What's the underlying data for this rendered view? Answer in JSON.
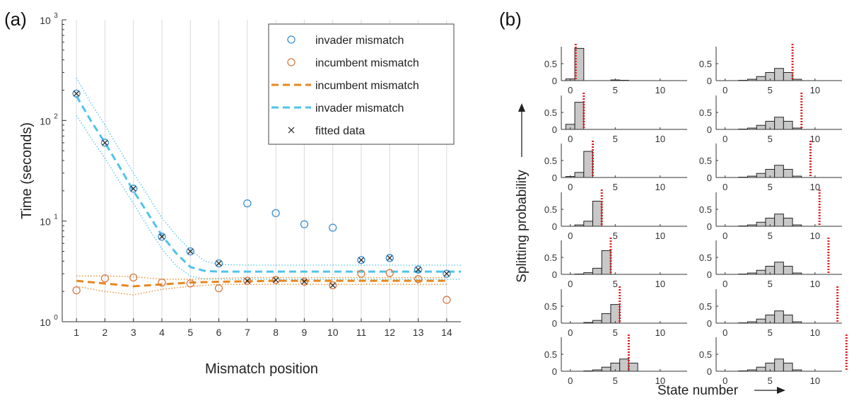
{
  "chart_data": [
    {
      "panel_label": "(a)",
      "type": "scatter",
      "xlabel": "Mismatch position",
      "ylabel": "Time (seconds)",
      "xlim": [
        0.5,
        14.5
      ],
      "ylim": [
        1,
        1000
      ],
      "yscale": "log",
      "xticks": [
        "1",
        "2",
        "3",
        "4",
        "5",
        "6",
        "7",
        "8",
        "9",
        "10",
        "11",
        "12",
        "13",
        "14"
      ],
      "yticks": [
        {
          "value": 1,
          "label": "10",
          "exp": "0"
        },
        {
          "value": 10,
          "label": "10",
          "exp": "1"
        },
        {
          "value": 100,
          "label": "10",
          "exp": "2"
        },
        {
          "value": 1000,
          "label": "10",
          "exp": "3"
        }
      ],
      "grid": "vertical",
      "legend_position": "top-right",
      "legend": [
        {
          "label": "invader mismatch",
          "marker": "circle",
          "color": "#3a8fd0"
        },
        {
          "label": "incumbent mismatch",
          "marker": "circle",
          "color": "#d47a45"
        },
        {
          "label": "incumbent mismatch",
          "marker": "dashed-line",
          "color": "#e8871e"
        },
        {
          "label": "invader mismatch",
          "marker": "dashed-line",
          "color": "#4fc3ea"
        },
        {
          "label": "fitted data",
          "marker": "x",
          "color": "#222222"
        }
      ],
      "series": {
        "invader_points": {
          "x": [
            1,
            2,
            3,
            4,
            5,
            6,
            7,
            8,
            9,
            10,
            11,
            12,
            13,
            14
          ],
          "y": [
            185,
            60,
            21,
            7,
            5,
            3.8,
            15,
            12,
            9.3,
            8.6,
            4.1,
            4.3,
            3.3,
            3.0
          ]
        },
        "incumbent_points": {
          "x": [
            1,
            2,
            3,
            4,
            5,
            6,
            7,
            8,
            9,
            10,
            11,
            12,
            13,
            14
          ],
          "y": [
            2.05,
            2.7,
            2.75,
            2.45,
            2.4,
            2.15,
            2.55,
            2.6,
            2.5,
            2.3,
            3.0,
            3.05,
            2.65,
            1.65
          ]
        },
        "fitted_x": [
          1,
          2,
          3,
          4,
          5,
          6,
          7,
          8,
          9,
          10,
          11,
          12,
          13,
          14
        ],
        "fitted_y": [
          185,
          60,
          21,
          7,
          5,
          3.8,
          2.55,
          2.6,
          2.5,
          2.3,
          4.1,
          4.3,
          3.3,
          3.0
        ],
        "invader_fit": {
          "x": [
            1,
            1.5,
            2,
            2.5,
            3,
            3.5,
            4,
            4.5,
            5,
            5.5,
            6,
            7,
            8,
            9,
            10,
            11,
            12,
            13,
            14,
            14.5
          ],
          "y": [
            175,
            100,
            60,
            35,
            20,
            12,
            7.2,
            4.8,
            3.5,
            3.2,
            3.15,
            3.15,
            3.15,
            3.15,
            3.15,
            3.15,
            3.15,
            3.15,
            3.15,
            3.15
          ]
        },
        "invader_fit_upper": {
          "x": [
            1,
            1.5,
            2,
            2.5,
            3,
            3.5,
            4,
            4.5,
            5,
            5.5,
            6,
            7,
            8,
            9,
            10,
            11,
            12,
            13,
            14,
            14.5
          ],
          "y": [
            265,
            150,
            90,
            52,
            30,
            18,
            10.8,
            7.2,
            5.2,
            4.0,
            3.7,
            3.65,
            3.65,
            3.65,
            3.65,
            3.65,
            3.65,
            3.65,
            3.65,
            3.65
          ]
        },
        "invader_fit_lower": {
          "x": [
            1,
            1.5,
            2,
            2.5,
            3,
            3.5,
            4,
            4.5,
            5,
            5.5,
            6,
            7,
            8,
            9,
            10,
            11,
            12,
            13,
            14,
            14.5
          ],
          "y": [
            112,
            68,
            42,
            25,
            15,
            8.8,
            5.3,
            3.6,
            2.85,
            2.65,
            2.65,
            2.65,
            2.65,
            2.65,
            2.65,
            2.65,
            2.65,
            2.65,
            2.65,
            2.65
          ]
        },
        "incumbent_fit": {
          "x": [
            1,
            2,
            3,
            4,
            5,
            6,
            7,
            8,
            9,
            10,
            11,
            12,
            13,
            14
          ],
          "y": [
            2.55,
            2.4,
            2.25,
            2.35,
            2.45,
            2.5,
            2.52,
            2.55,
            2.55,
            2.55,
            2.55,
            2.55,
            2.55,
            2.55
          ]
        },
        "incumbent_fit_upper": {
          "x": [
            1,
            2,
            3,
            4,
            5,
            6,
            7,
            8,
            9,
            10,
            11,
            12,
            13,
            14
          ],
          "y": [
            2.85,
            2.85,
            2.8,
            2.65,
            2.65,
            2.7,
            2.75,
            2.75,
            2.75,
            2.75,
            2.75,
            2.75,
            2.75,
            2.75
          ]
        },
        "incumbent_fit_lower": {
          "x": [
            1,
            2,
            3,
            4,
            5,
            6,
            7,
            8,
            9,
            10,
            11,
            12,
            13,
            14
          ],
          "y": [
            2.25,
            2.0,
            1.85,
            2.1,
            2.25,
            2.35,
            2.35,
            2.35,
            2.35,
            2.35,
            2.35,
            2.35,
            2.35,
            2.35
          ]
        }
      }
    },
    {
      "panel_label": "(b)",
      "type": "bar",
      "xlabel": "State number",
      "ylabel": "Splitting probability",
      "xlim": [
        -1,
        13
      ],
      "ylim": [
        0,
        1
      ],
      "xticks": [
        {
          "value": 0,
          "label": "0"
        },
        {
          "value": 5,
          "label": "5"
        },
        {
          "value": 10,
          "label": "10"
        }
      ],
      "yticks": [
        {
          "value": 0,
          "label": "0"
        },
        {
          "value": 0.5,
          "label": "0.5"
        }
      ],
      "categories": [
        0,
        1,
        2,
        3,
        4,
        5,
        6,
        7,
        8,
        9,
        10,
        11,
        12
      ],
      "bar_color": "#c8c8c8",
      "marker_color": "#e02020",
      "panels": [
        {
          "values": [
            0.05,
            0.95,
            0,
            0,
            0,
            0.02,
            0.01,
            0,
            0,
            0,
            0,
            0,
            0
          ],
          "marker": 0.6
        },
        {
          "values": [
            0.15,
            0.8,
            0,
            0,
            0,
            0,
            0,
            0,
            0,
            0,
            0,
            0,
            0
          ],
          "marker": 1.5
        },
        {
          "values": [
            0.03,
            0.15,
            0.77,
            0,
            0,
            0,
            0,
            0,
            0,
            0,
            0,
            0,
            0
          ],
          "marker": 2.5
        },
        {
          "values": [
            0,
            0.04,
            0.15,
            0.74,
            0,
            0,
            0,
            0,
            0,
            0,
            0,
            0,
            0
          ],
          "marker": 3.5
        },
        {
          "values": [
            0,
            0.01,
            0.05,
            0.18,
            0.7,
            0,
            0,
            0,
            0,
            0,
            0,
            0,
            0
          ],
          "marker": 4.5
        },
        {
          "values": [
            0,
            0,
            0.02,
            0.08,
            0.28,
            0.55,
            0,
            0,
            0,
            0,
            0,
            0,
            0
          ],
          "marker": 5.5
        },
        {
          "values": [
            0,
            0,
            0.01,
            0.04,
            0.12,
            0.24,
            0.36,
            0.24,
            0,
            0,
            0,
            0,
            0
          ],
          "marker": 6.5
        },
        {
          "values": [
            0,
            0,
            0.01,
            0.04,
            0.12,
            0.24,
            0.36,
            0.24,
            0.04,
            0,
            0,
            0,
            0
          ],
          "marker": 7.5
        },
        {
          "values": [
            0,
            0,
            0.01,
            0.04,
            0.12,
            0.24,
            0.36,
            0.24,
            0.04,
            0,
            0,
            0,
            0
          ],
          "marker": 8.5
        },
        {
          "values": [
            0,
            0,
            0.01,
            0.04,
            0.12,
            0.24,
            0.36,
            0.24,
            0.04,
            0,
            0,
            0,
            0
          ],
          "marker": 9.5
        },
        {
          "values": [
            0,
            0,
            0.01,
            0.04,
            0.12,
            0.24,
            0.36,
            0.24,
            0.04,
            0,
            0,
            0,
            0
          ],
          "marker": 10.5
        },
        {
          "values": [
            0,
            0,
            0.01,
            0.04,
            0.12,
            0.24,
            0.36,
            0.24,
            0.04,
            0,
            0,
            0,
            0
          ],
          "marker": 11.5
        },
        {
          "values": [
            0,
            0,
            0.01,
            0.04,
            0.12,
            0.24,
            0.36,
            0.24,
            0.04,
            0,
            0,
            0,
            0
          ],
          "marker": 12.5
        },
        {
          "values": [
            0,
            0,
            0.01,
            0.04,
            0.12,
            0.24,
            0.36,
            0.24,
            0.04,
            0,
            0,
            0,
            0
          ],
          "marker": 13.5
        }
      ]
    }
  ],
  "colors": {
    "axis": "#333333",
    "grid": "#d9d9d9",
    "invader_circle": "#3a8fd0",
    "incumbent_circle": "#d47a45",
    "invader_line": "#4fc3ea",
    "incumbent_line": "#e8871e",
    "fitted": "#222222"
  }
}
